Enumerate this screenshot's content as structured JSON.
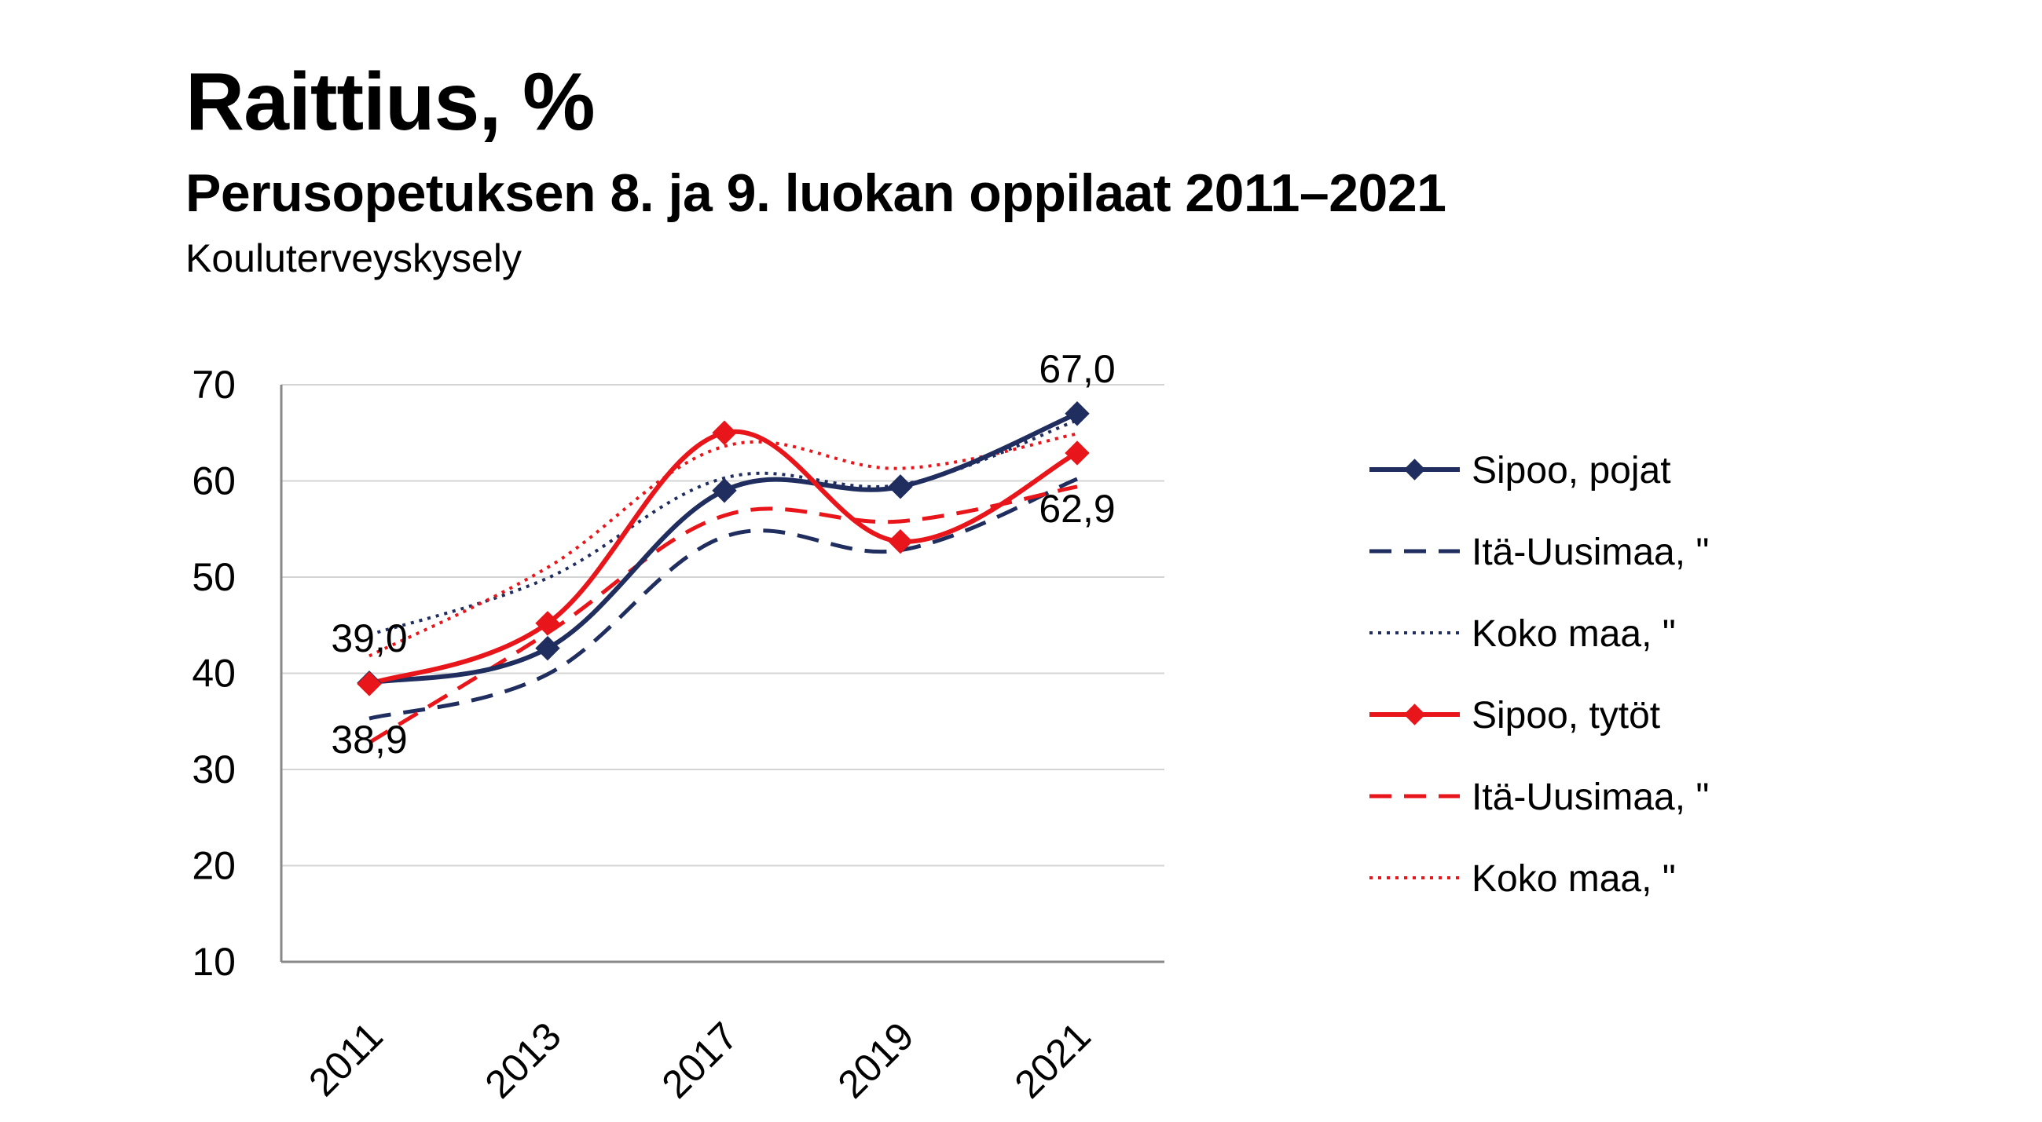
{
  "title": "Raittius, %",
  "subtitle": "Perusopetuksen 8. ja 9. luokan oppilaat 2011–2021",
  "source": "Kouluterveyskysely",
  "colors": {
    "navy": "#1f2d5f",
    "red": "#e8161b",
    "grid": "#d4d4d4",
    "axis": "#888888"
  },
  "chart_data": {
    "type": "line",
    "categories": [
      "2011",
      "2013",
      "2017",
      "2019",
      "2021"
    ],
    "ylim": [
      10,
      70
    ],
    "yticks": [
      10,
      20,
      30,
      40,
      50,
      60,
      70
    ],
    "grid": true,
    "legend": "right",
    "series": [
      {
        "name": "Sipoo, pojat",
        "color": "#1f2d5f",
        "style": "solid",
        "marker": "diamond",
        "values": [
          39.0,
          42.6,
          59.0,
          59.4,
          67.0
        ]
      },
      {
        "name": "Itä-Uusimaa, \"",
        "color": "#1f2d5f",
        "style": "dashed",
        "marker": "none",
        "values": [
          35.3,
          39.9,
          54.2,
          52.8,
          60.2
        ]
      },
      {
        "name": "Koko maa, \"",
        "color": "#1f2d5f",
        "style": "dotted",
        "marker": "none",
        "values": [
          44.0,
          49.9,
          60.3,
          59.6,
          66.3
        ]
      },
      {
        "name": "Sipoo, tytöt",
        "color": "#e8161b",
        "style": "solid",
        "marker": "diamond",
        "values": [
          38.9,
          45.2,
          65.0,
          53.7,
          62.9
        ]
      },
      {
        "name": "Itä-Uusimaa, \"",
        "color": "#e8161b",
        "style": "dashed",
        "marker": "none",
        "values": [
          32.8,
          44.2,
          56.4,
          55.8,
          59.4
        ]
      },
      {
        "name": "Koko maa, \"",
        "color": "#e8161b",
        "style": "dotted",
        "marker": "none",
        "values": [
          41.8,
          51.0,
          63.6,
          61.3,
          64.9
        ]
      }
    ],
    "annotations": [
      {
        "text": "39,0",
        "series": 0,
        "index": 0,
        "pos": "above"
      },
      {
        "text": "38,9",
        "series": 3,
        "index": 0,
        "pos": "below"
      },
      {
        "text": "67,0",
        "series": 0,
        "index": 4,
        "pos": "above"
      },
      {
        "text": "62,9",
        "series": 3,
        "index": 4,
        "pos": "below"
      }
    ]
  }
}
